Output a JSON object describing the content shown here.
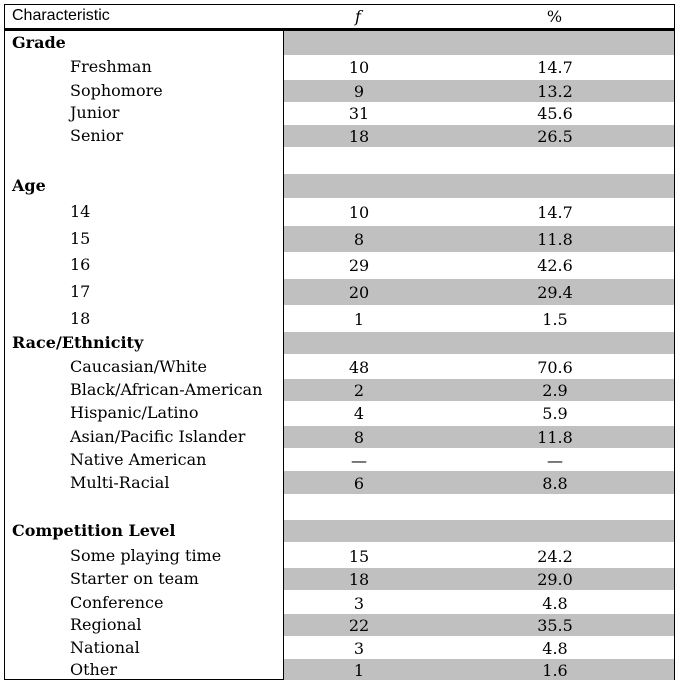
{
  "header": {
    "characteristic": "Characteristic",
    "f": "f",
    "percent": "%"
  },
  "rows": [
    {
      "label": "Grade",
      "kind": "cat",
      "f": "",
      "pct": "",
      "shade": true
    },
    {
      "label": "Freshman",
      "kind": "sub",
      "f": "10",
      "pct": "14.7",
      "shade": false
    },
    {
      "label": "Sophomore",
      "kind": "sub",
      "f": "9",
      "pct": "13.2",
      "shade": true
    },
    {
      "label": "Junior",
      "kind": "sub",
      "f": "31",
      "pct": "45.6",
      "shade": false
    },
    {
      "label": "Senior",
      "kind": "sub",
      "f": "18",
      "pct": "26.5",
      "shade": true
    },
    {
      "label": "",
      "kind": "blank",
      "f": "",
      "pct": "",
      "shade": false
    },
    {
      "label": "Age",
      "kind": "cat",
      "f": "",
      "pct": "",
      "shade": true
    },
    {
      "label": "14",
      "kind": "sub",
      "f": "10",
      "pct": "14.7",
      "shade": false
    },
    {
      "label": "15",
      "kind": "sub",
      "f": "8",
      "pct": "11.8",
      "shade": true
    },
    {
      "label": "16",
      "kind": "sub",
      "f": "29",
      "pct": "42.6",
      "shade": false
    },
    {
      "label": "17",
      "kind": "sub",
      "f": "20",
      "pct": "29.4",
      "shade": true
    },
    {
      "label": "18",
      "kind": "sub",
      "f": "1",
      "pct": "1.5",
      "shade": false
    },
    {
      "label": "Race/Ethnicity",
      "kind": "cat",
      "f": "",
      "pct": "",
      "shade": true
    },
    {
      "label": "Caucasian/White",
      "kind": "sub",
      "f": "48",
      "pct": "70.6",
      "shade": false
    },
    {
      "label": "Black/African-American",
      "kind": "sub",
      "f": "2",
      "pct": "2.9",
      "shade": true
    },
    {
      "label": "Hispanic/Latino",
      "kind": "sub",
      "f": "4",
      "pct": "5.9",
      "shade": false
    },
    {
      "label": "Asian/Pacific Islander",
      "kind": "sub",
      "f": "8",
      "pct": "11.8",
      "shade": true
    },
    {
      "label": "Native American",
      "kind": "sub",
      "f": "—",
      "pct": "—",
      "shade": false
    },
    {
      "label": "Multi-Racial",
      "kind": "sub",
      "f": "6",
      "pct": "8.8",
      "shade": true
    },
    {
      "label": "",
      "kind": "blank",
      "f": "",
      "pct": "",
      "shade": false
    },
    {
      "label": "Competition Level",
      "kind": "cat",
      "f": "",
      "pct": "",
      "shade": true
    },
    {
      "label": "Some playing time",
      "kind": "sub",
      "f": "15",
      "pct": "24.2",
      "shade": false
    },
    {
      "label": "Starter on team",
      "kind": "sub",
      "f": "18",
      "pct": "29.0",
      "shade": true
    },
    {
      "label": "Conference",
      "kind": "sub",
      "f": "3",
      "pct": "4.8",
      "shade": false
    },
    {
      "label": "Regional",
      "kind": "sub",
      "f": "22",
      "pct": "35.5",
      "shade": true
    },
    {
      "label": "National",
      "kind": "sub",
      "f": "3",
      "pct": "4.8",
      "shade": false
    },
    {
      "label": "Other",
      "kind": "sub",
      "f": "1",
      "pct": "1.6",
      "shade": true
    }
  ]
}
